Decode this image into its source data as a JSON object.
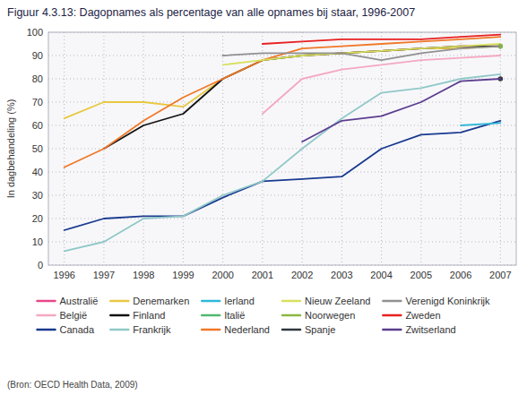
{
  "chart_data": {
    "type": "line",
    "title": "Figuur 4.3.13: Dagopnames als percentage van alle opnames bij staar, 1996-2007",
    "y_label": "In dagbehandeling (%)",
    "source": "(Bron: OECD Health Data, 2009)",
    "x": [
      1996,
      1997,
      1998,
      1999,
      2000,
      2001,
      2002,
      2003,
      2004,
      2005,
      2006,
      2007
    ],
    "xlim": [
      1995.6,
      2007.4
    ],
    "xticks": [
      1996,
      1997,
      1998,
      1999,
      2000,
      2001,
      2002,
      2003,
      2004,
      2005,
      2006,
      2007
    ],
    "ylim": [
      0,
      100
    ],
    "yticks": [
      0,
      10,
      20,
      30,
      40,
      50,
      60,
      70,
      80,
      90,
      100
    ],
    "grid": true,
    "legend": "bottom",
    "series": [
      {
        "name": "Australië",
        "color": "#e8488a",
        "values": [
          null,
          null,
          null,
          null,
          null,
          null,
          90,
          91,
          92,
          93,
          94,
          94
        ]
      },
      {
        "name": "België",
        "color": "#f4a8c0",
        "values": [
          null,
          null,
          null,
          null,
          null,
          65,
          80,
          84,
          86,
          88,
          89,
          90
        ]
      },
      {
        "name": "Canada",
        "color": "#1a3a8f",
        "values": [
          15,
          20,
          21,
          21,
          29,
          36,
          37,
          38,
          50,
          56,
          57,
          62
        ]
      },
      {
        "name": "Denemarken",
        "color": "#e8c840",
        "values": [
          63,
          70,
          70,
          68,
          80,
          88,
          90,
          91,
          92,
          93,
          93,
          94
        ]
      },
      {
        "name": "Finland",
        "color": "#111111",
        "values": [
          null,
          50,
          60,
          65,
          80,
          88,
          90,
          91,
          92,
          93,
          94,
          94
        ]
      },
      {
        "name": "Frankrijk",
        "color": "#90c8c8",
        "values": [
          6,
          10,
          20,
          21,
          30,
          36,
          50,
          63,
          74,
          76,
          80,
          82
        ]
      },
      {
        "name": "Ierland",
        "color": "#30b8d8",
        "values": [
          null,
          null,
          null,
          null,
          null,
          null,
          null,
          null,
          null,
          null,
          60,
          61
        ]
      },
      {
        "name": "Italië",
        "color": "#50b870",
        "values": [
          null,
          null,
          null,
          null,
          null,
          null,
          null,
          null,
          null,
          null,
          null,
          94
        ]
      },
      {
        "name": "Nederland",
        "color": "#f07828",
        "values": [
          42,
          50,
          62,
          72,
          80,
          88,
          93,
          94,
          95,
          96,
          97,
          98
        ]
      },
      {
        "name": "Nieuw Zeeland",
        "color": "#d8e060",
        "values": [
          null,
          null,
          null,
          null,
          86,
          88,
          90,
          91,
          92,
          93,
          94,
          95
        ]
      },
      {
        "name": "Noorwegen",
        "color": "#8bb840",
        "values": [
          null,
          null,
          null,
          null,
          null,
          null,
          null,
          null,
          null,
          null,
          null,
          94
        ]
      },
      {
        "name": "Spanje",
        "color": "#303840",
        "values": [
          null,
          null,
          null,
          null,
          null,
          null,
          null,
          null,
          null,
          null,
          null,
          80
        ]
      },
      {
        "name": "Verenigd Koninkrijk",
        "color": "#909090",
        "values": [
          null,
          null,
          null,
          null,
          90,
          91,
          91,
          91,
          88,
          91,
          93,
          94
        ]
      },
      {
        "name": "Zweden",
        "color": "#e82020",
        "values": [
          null,
          null,
          null,
          null,
          null,
          95,
          96,
          97,
          97,
          97,
          98,
          99
        ]
      },
      {
        "name": "Zwitserland",
        "color": "#5c3d8f",
        "values": [
          null,
          null,
          null,
          null,
          null,
          null,
          53,
          62,
          64,
          70,
          79,
          80
        ]
      }
    ]
  }
}
